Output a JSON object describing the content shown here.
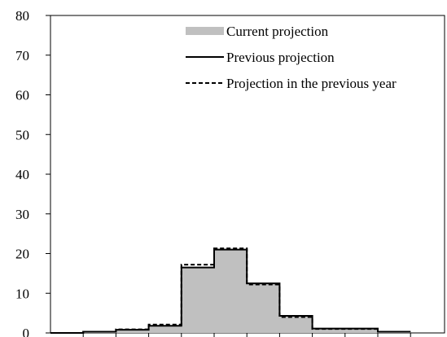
{
  "chart_data": {
    "type": "area",
    "title": "",
    "xlabel": "",
    "ylabel": "",
    "ylim": [
      0,
      80
    ],
    "yticks": [
      "0",
      "10",
      "20",
      "30",
      "40",
      "50",
      "60",
      "70",
      "80"
    ],
    "bins": 11,
    "series": [
      {
        "name": "Current projection",
        "style": "fill",
        "color": "#c0c0c0",
        "values": [
          0,
          0.3,
          0.8,
          1.8,
          16.5,
          21.0,
          12.5,
          4.3,
          1.1,
          1.1,
          0.3
        ]
      },
      {
        "name": "Previous projection",
        "style": "solid",
        "color": "#000000",
        "values": [
          0,
          0.3,
          0.8,
          1.8,
          16.5,
          21.0,
          12.5,
          4.3,
          1.1,
          1.1,
          0.3
        ]
      },
      {
        "name": "Projection in the previous year",
        "style": "dashed",
        "color": "#000000",
        "values": [
          0,
          0.3,
          0.9,
          2.1,
          17.2,
          21.3,
          12.2,
          4.0,
          1.0,
          1.0,
          0.3
        ]
      }
    ],
    "legend": {
      "position": "top-right"
    },
    "grid": false
  }
}
